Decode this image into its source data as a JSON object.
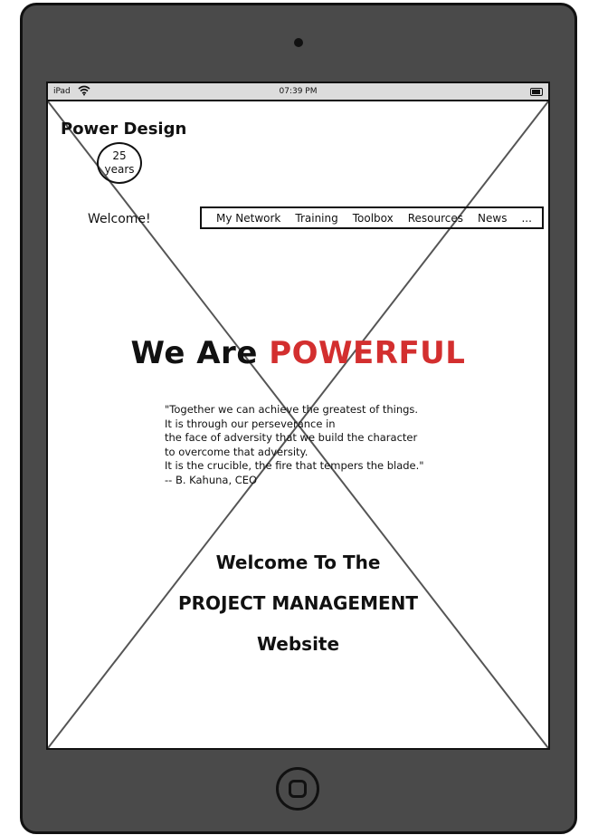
{
  "statusbar": {
    "carrier": "iPad",
    "time": "07:39 PM"
  },
  "brand": {
    "name": "Power Design",
    "badge_number": "25",
    "badge_unit": "years"
  },
  "welcome_label": "Welcome!",
  "nav": {
    "items": [
      "My Network",
      "Training",
      "Toolbox",
      "Resources",
      "News",
      "..."
    ]
  },
  "hero": {
    "prefix": "We Are",
    "accent": "POWERFUL",
    "accent_color": "#d32f2f"
  },
  "quote": {
    "lines": [
      "\"Together we can achieve the greatest of things.",
      "It is through our perseverance in",
      "the face of adversity that we build the character",
      "to overcome that adversity.",
      "It is the crucible, the fire that tempers the blade.\"",
      "--  B. Kahuna, CEO"
    ]
  },
  "site_welcome": {
    "line1": "Welcome To The",
    "line2": "PROJECT MANAGEMENT",
    "line3": "Website"
  }
}
